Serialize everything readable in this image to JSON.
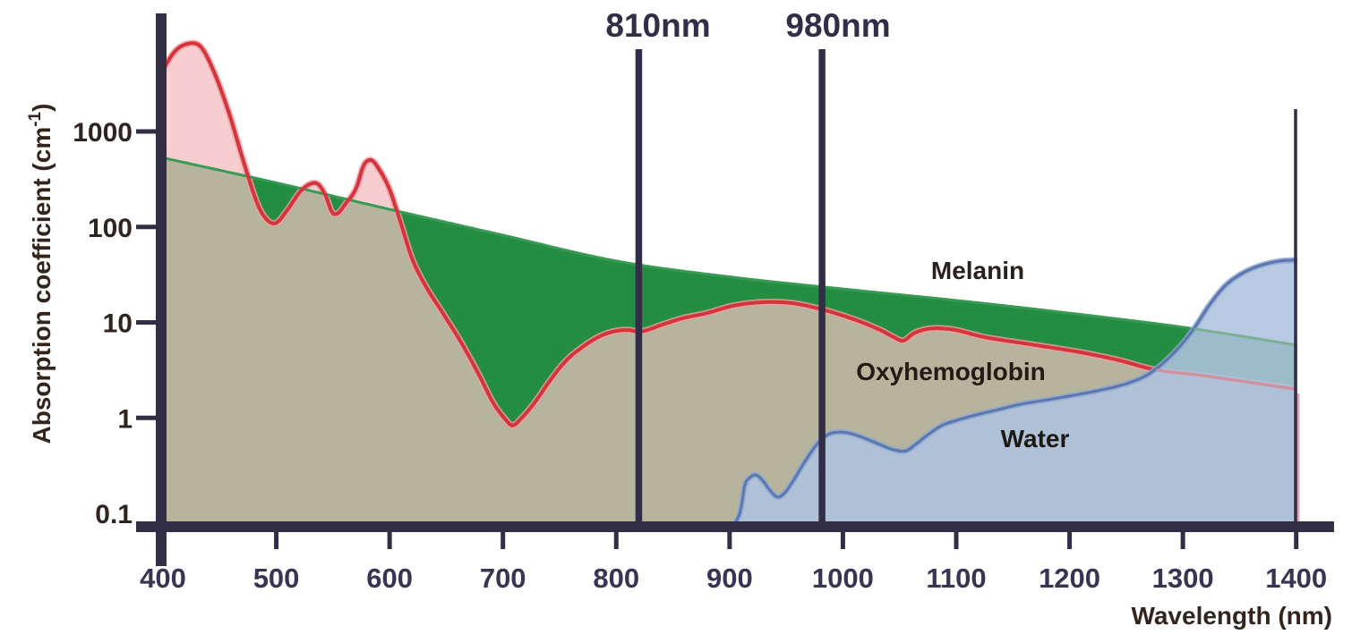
{
  "y_axis": {
    "title_main": "Absorption coefficient (cm",
    "title_sup": "-1",
    "title_end": ")",
    "ticks": [
      "1000",
      "100",
      "10",
      "1",
      "0.1"
    ]
  },
  "x_axis": {
    "title": "Wavelength (nm)",
    "ticks": [
      "400",
      "500",
      "600",
      "700",
      "800",
      "900",
      "1000",
      "1100",
      "1200",
      "1300",
      "1400"
    ]
  },
  "annotations": {
    "line_810_label": "810nm",
    "line_980_label": "980nm"
  },
  "series_labels": {
    "melanin": "Melanin",
    "oxyhemoglobin": "Oxyhemoglobin",
    "water": "Water"
  },
  "colors": {
    "axis": "#322e45",
    "annotation_line": "#322e48",
    "melanin_fill": "#238d41",
    "melanin_line": "#3a9a55",
    "melanin_line_muted": "#74ab8a",
    "oxy_fill": "#f8cdd0",
    "oxy_line": "#d4343c",
    "oxy_line_halo": "#ef9fa3",
    "oxy_line_muted": "#d48b96",
    "overlap_fill": "#b6b49c",
    "water_fill": "#aec3de",
    "water_line": "#5a77ae",
    "water_line_halo": "#8fa6cf",
    "boundary_line": "#322e45"
  },
  "chart_data": {
    "type": "area",
    "title": "",
    "xlabel": "Wavelength (nm)",
    "ylabel": "Absorption coefficient (cm-1)",
    "y_scale": "log",
    "x_range": [
      400,
      1400
    ],
    "y_range": [
      0.1,
      10000
    ],
    "grid": false,
    "legend_position": "inline-labels",
    "annotations": [
      {
        "label": "810nm",
        "nm": 810
      },
      {
        "label": "980nm",
        "nm": 980
      }
    ],
    "series": [
      {
        "name": "Melanin",
        "points": [
          [
            400,
            530
          ],
          [
            500,
            290
          ],
          [
            600,
            153
          ],
          [
            700,
            82
          ],
          [
            800,
            44
          ],
          [
            900,
            30
          ],
          [
            1007,
            22
          ],
          [
            1100,
            17
          ],
          [
            1200,
            12.5
          ],
          [
            1300,
            8.9
          ],
          [
            1400,
            5.8
          ]
        ]
      },
      {
        "name": "Oxyhemoglobin",
        "points": [
          [
            400,
            4500
          ],
          [
            411,
            7000
          ],
          [
            422,
            8300
          ],
          [
            433,
            7800
          ],
          [
            444,
            4500
          ],
          [
            458,
            1600
          ],
          [
            471,
            490
          ],
          [
            484,
            167
          ],
          [
            493,
            115
          ],
          [
            500,
            110
          ],
          [
            509,
            146
          ],
          [
            522,
            240
          ],
          [
            531,
            285
          ],
          [
            537,
            280
          ],
          [
            544,
            207
          ],
          [
            549,
            143
          ],
          [
            554,
            138
          ],
          [
            561,
            174
          ],
          [
            571,
            262
          ],
          [
            577,
            440
          ],
          [
            584,
            500
          ],
          [
            591,
            397
          ],
          [
            600,
            247
          ],
          [
            609,
            118
          ],
          [
            620,
            46
          ],
          [
            631,
            25
          ],
          [
            647,
            12.5
          ],
          [
            663,
            6.2
          ],
          [
            679,
            2.8
          ],
          [
            692,
            1.4
          ],
          [
            703,
            0.94
          ],
          [
            708,
            0.83
          ],
          [
            716,
            0.98
          ],
          [
            729,
            1.5
          ],
          [
            742,
            2.5
          ],
          [
            756,
            4.0
          ],
          [
            770,
            5.5
          ],
          [
            784,
            7.0
          ],
          [
            797,
            8.0
          ],
          [
            811,
            8.3
          ],
          [
            819,
            8.0
          ],
          [
            827,
            8.3
          ],
          [
            841,
            9.5
          ],
          [
            858,
            11
          ],
          [
            880,
            12.5
          ],
          [
            904,
            15
          ],
          [
            932,
            16.3
          ],
          [
            955,
            15.9
          ],
          [
            975,
            14.3
          ],
          [
            995,
            12.3
          ],
          [
            1016,
            10.1
          ],
          [
            1034,
            8.2
          ],
          [
            1046,
            6.9
          ],
          [
            1053,
            6.4
          ],
          [
            1062,
            7.6
          ],
          [
            1074,
            8.5
          ],
          [
            1094,
            8.5
          ],
          [
            1125,
            7.0
          ],
          [
            1165,
            5.9
          ],
          [
            1212,
            4.8
          ],
          [
            1244,
            4.0
          ],
          [
            1275,
            3.2
          ],
          [
            1315,
            2.8
          ],
          [
            1354,
            2.4
          ],
          [
            1400,
            2.0
          ]
        ]
      },
      {
        "name": "Water",
        "points": [
          [
            905,
            0.08
          ],
          [
            910,
            0.11
          ],
          [
            913,
            0.19
          ],
          [
            918,
            0.237
          ],
          [
            923,
            0.253
          ],
          [
            929,
            0.222
          ],
          [
            936,
            0.172
          ],
          [
            942,
            0.148
          ],
          [
            948,
            0.161
          ],
          [
            956,
            0.218
          ],
          [
            966,
            0.342
          ],
          [
            977,
            0.527
          ],
          [
            987,
            0.67
          ],
          [
            997,
            0.71
          ],
          [
            1008,
            0.68
          ],
          [
            1021,
            0.6
          ],
          [
            1034,
            0.517
          ],
          [
            1045,
            0.463
          ],
          [
            1056,
            0.453
          ],
          [
            1065,
            0.538
          ],
          [
            1076,
            0.68
          ],
          [
            1087,
            0.828
          ],
          [
            1100,
            0.94
          ],
          [
            1117,
            1.07
          ],
          [
            1137,
            1.22
          ],
          [
            1157,
            1.39
          ],
          [
            1181,
            1.55
          ],
          [
            1204,
            1.73
          ],
          [
            1228,
            1.96
          ],
          [
            1250,
            2.28
          ],
          [
            1266,
            2.71
          ],
          [
            1277,
            3.3
          ],
          [
            1288,
            4.3
          ],
          [
            1299,
            5.9
          ],
          [
            1310,
            8.7
          ],
          [
            1323,
            15
          ],
          [
            1337,
            24
          ],
          [
            1353,
            33
          ],
          [
            1370,
            40
          ],
          [
            1386,
            44
          ],
          [
            1400,
            45
          ]
        ]
      }
    ]
  }
}
